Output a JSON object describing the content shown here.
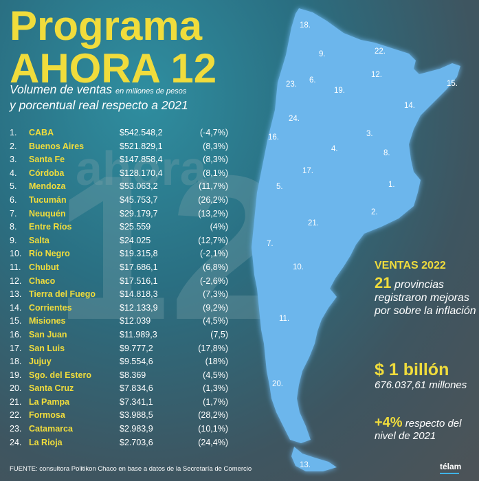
{
  "title_line1": "Programa",
  "title_line2": "AHORA 12",
  "subtitle": {
    "part1": "Volumen de ventas",
    "part1_small": "en millones de pesos",
    "part2": "y porcentual real respecto a 2021"
  },
  "rows": [
    {
      "rank": "1.",
      "name": "CABA",
      "amount": "$542.548,2",
      "pct": "(-4,7%)"
    },
    {
      "rank": "2.",
      "name": "Buenos Aires",
      "amount": "$521.829,1",
      "pct": "(8,3%)"
    },
    {
      "rank": "3.",
      "name": "Santa Fe",
      "amount": "$147.858,4",
      "pct": "(8,3%)"
    },
    {
      "rank": "4.",
      "name": "Córdoba",
      "amount": "$128.170,4",
      "pct": "(8,1%)"
    },
    {
      "rank": "5.",
      "name": "Mendoza",
      "amount": "$53.063,2",
      "pct": "(11,7%)"
    },
    {
      "rank": "6.",
      "name": "Tucumán",
      "amount": "$45.753,7",
      "pct": "(26,2%)"
    },
    {
      "rank": "7.",
      "name": "Neuquén",
      "amount": "$29.179,7",
      "pct": "(13,2%)"
    },
    {
      "rank": "8.",
      "name": "Entre Ríos",
      "amount": "$25.559",
      "pct": "(4%)"
    },
    {
      "rank": "9.",
      "name": "Salta",
      "amount": "$24.025",
      "pct": "(12,7%)"
    },
    {
      "rank": "10.",
      "name": "Río Negro",
      "amount": "$19.315,8",
      "pct": "(-2,1%)"
    },
    {
      "rank": "11.",
      "name": "Chubut",
      "amount": "$17.686,1",
      "pct": "(6,8%)"
    },
    {
      "rank": "12.",
      "name": "Chaco",
      "amount": "$17.516,1",
      "pct": "(-2,6%)"
    },
    {
      "rank": "13.",
      "name": "Tierra del Fuego",
      "amount": "$14.818,3",
      "pct": "(7,3%)"
    },
    {
      "rank": "14.",
      "name": "Corrientes",
      "amount": "$12.133,9",
      "pct": "(9,2%)"
    },
    {
      "rank": "15.",
      "name": "Misiones",
      "amount": "$12.039",
      "pct": "(4,5%)"
    },
    {
      "rank": "16.",
      "name": "San Juan",
      "amount": "$11.989,3",
      "pct": "(7,5)"
    },
    {
      "rank": "17.",
      "name": "San Luis",
      "amount": "$9.777,2",
      "pct": "(17,8%)"
    },
    {
      "rank": "18.",
      "name": "Jujuy",
      "amount": "$9.554,6",
      "pct": "(18%)"
    },
    {
      "rank": "19.",
      "name": "Sgo. del Estero",
      "amount": "$8.369",
      "pct": "(4,5%)"
    },
    {
      "rank": "20.",
      "name": "Santa Cruz",
      "amount": "$7.834,6",
      "pct": "(1,3%)"
    },
    {
      "rank": "21.",
      "name": "La Pampa",
      "amount": "$7.341,1",
      "pct": "(1,7%)"
    },
    {
      "rank": "22.",
      "name": "Formosa",
      "amount": "$3.988,5",
      "pct": "(28,2%)"
    },
    {
      "rank": "23.",
      "name": "Catamarca",
      "amount": "$2.983,9",
      "pct": "(10,1%)"
    },
    {
      "rank": "24.",
      "name": "La Rioja",
      "amount": "$2.703,6",
      "pct": "(24,4%)"
    }
  ],
  "map_labels": [
    "18.",
    "9.",
    "22.",
    "12.",
    "15.",
    "23.",
    "6.",
    "19.",
    "14.",
    "24.",
    "16.",
    "3.",
    "4.",
    "8.",
    "17.",
    "5.",
    "1.",
    "2.",
    "21.",
    "7.",
    "10.",
    "11.",
    "20.",
    "13."
  ],
  "summary": {
    "title": "VENTAS 2022",
    "count": "21",
    "count_text": "provincias registraron mejoras por sobre la inflación",
    "total": "$ 1 billón",
    "total_detail": "676.037,61 millones",
    "growth": "+4%",
    "growth_text": "respecto del nivel de 2021"
  },
  "footer": "FUENTE: consultora Politikon Chaco en base a datos de la Secretaría de Comercio",
  "logo": "télam",
  "colors": {
    "title": "#f0dc3c",
    "map": "#6cb6ec",
    "logo_bar": "#3fb3e8"
  }
}
